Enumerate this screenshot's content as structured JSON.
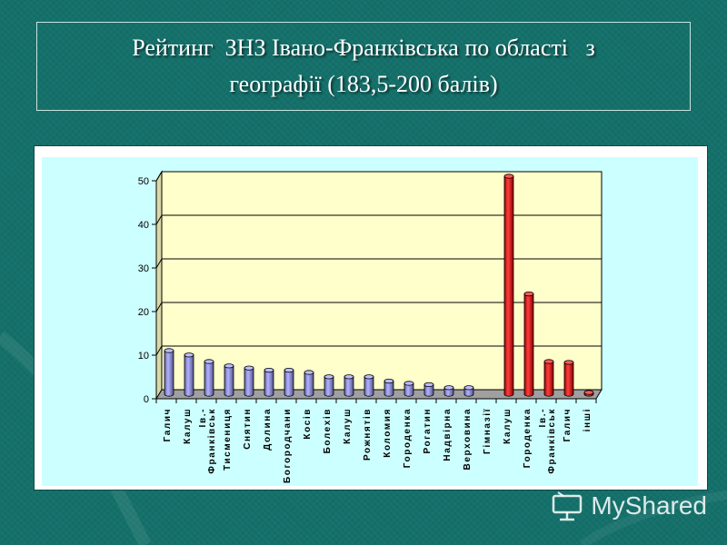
{
  "slide": {
    "title_line1": "Рейтинг  ЗНЗ Івано-Франківська по області   з",
    "title_line2": "географії (183,5-200 балів)"
  },
  "watermark": {
    "text": "MyShared",
    "icon": "presentation-screen-icon"
  },
  "colors": {
    "background": "#14706a",
    "plot_area": "#ffffcc",
    "chart_area": "#ccffff",
    "bar_blue": "#9999ff",
    "bar_red": "#ff0000"
  },
  "chart_data": {
    "type": "bar",
    "style": "3d-cylinder",
    "title": "",
    "xlabel": "",
    "ylabel": "",
    "ylim": [
      0,
      50
    ],
    "yticks": [
      0,
      10,
      20,
      30,
      40,
      50
    ],
    "grid": true,
    "legend": "none",
    "categories": [
      "Галич",
      "Калуш",
      "Ів.-Франківськ",
      "Тисмениця",
      "Снятин",
      "Долина",
      "Богородчани",
      "Косів",
      "Болехів",
      "Калуш",
      "Рожнятів",
      "Коломия",
      "Городенка",
      "Рогатин",
      "Надвірна",
      "Верховина",
      "Гімназії",
      "Калуш",
      "Городенка",
      "Ів.-Франківськ",
      "Галич",
      "інші"
    ],
    "tick_labels": [
      [
        "Галич"
      ],
      [
        "Калуш"
      ],
      [
        "Ів.-",
        "Франківськ"
      ],
      [
        "Тисмениця"
      ],
      [
        "Снятин"
      ],
      [
        "Долина"
      ],
      [
        "Богородчани"
      ],
      [
        "Косів"
      ],
      [
        "Болехів"
      ],
      [
        "Калуш"
      ],
      [
        "Рожнятів"
      ],
      [
        "Коломия"
      ],
      [
        "Городенка"
      ],
      [
        "Рогатин"
      ],
      [
        "Надвірна"
      ],
      [
        "Верховина"
      ],
      [
        "Гімназії"
      ],
      [
        "Калуш"
      ],
      [
        "Городенка"
      ],
      [
        "Ів.-",
        "Франківськ"
      ],
      [
        "Галич"
      ],
      [
        "інші"
      ]
    ],
    "values": [
      10,
      9,
      7.5,
      6.5,
      6,
      5.5,
      5.5,
      5,
      4,
      4,
      4,
      3,
      2.5,
      2.2,
      1.5,
      1.5,
      0,
      50,
      23,
      7.5,
      7.3,
      0.4
    ],
    "colors": [
      "#9999ff",
      "#9999ff",
      "#9999ff",
      "#9999ff",
      "#9999ff",
      "#9999ff",
      "#9999ff",
      "#9999ff",
      "#9999ff",
      "#9999ff",
      "#9999ff",
      "#9999ff",
      "#9999ff",
      "#9999ff",
      "#9999ff",
      "#9999ff",
      "#9999ff",
      "#ff0000",
      "#ff0000",
      "#ff0000",
      "#ff0000",
      "#ff0000"
    ]
  }
}
